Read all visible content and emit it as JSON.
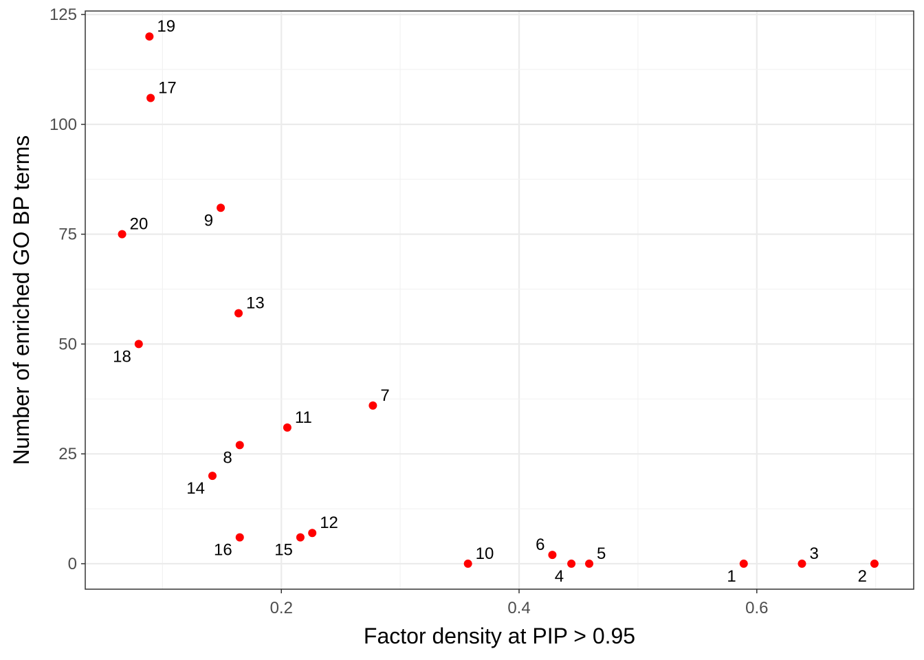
{
  "chart_data": {
    "type": "scatter",
    "title": "",
    "xlabel": "Factor density at PIP > 0.95",
    "ylabel": "Number of enriched GO BP terms",
    "xlim": [
      0.035,
      0.732
    ],
    "ylim": [
      -5.8,
      125.8
    ],
    "xticks": [
      0.2,
      0.4,
      0.6
    ],
    "xtick_labels": [
      "0.2",
      "0.4",
      "0.6"
    ],
    "yticks": [
      0,
      25,
      50,
      75,
      100,
      125
    ],
    "ytick_labels": [
      "0",
      "25",
      "50",
      "75",
      "100",
      "125"
    ],
    "grid": true,
    "legend": "none",
    "point_color": "#ff0000",
    "points": [
      {
        "label": "1",
        "x": 0.589,
        "y": 0,
        "label_pos": "bottom-left"
      },
      {
        "label": "2",
        "x": 0.699,
        "y": 0,
        "label_pos": "bottom-left"
      },
      {
        "label": "3",
        "x": 0.638,
        "y": 0,
        "label_pos": "top-right"
      },
      {
        "label": "4",
        "x": 0.444,
        "y": 0,
        "label_pos": "bottom-left"
      },
      {
        "label": "5",
        "x": 0.459,
        "y": 0,
        "label_pos": "top-right"
      },
      {
        "label": "6",
        "x": 0.428,
        "y": 2,
        "label_pos": "top-left"
      },
      {
        "label": "7",
        "x": 0.277,
        "y": 36,
        "label_pos": "top-right"
      },
      {
        "label": "8",
        "x": 0.165,
        "y": 27,
        "label_pos": "bottom-left"
      },
      {
        "label": "9",
        "x": 0.149,
        "y": 81,
        "label_pos": "bottom-left"
      },
      {
        "label": "10",
        "x": 0.357,
        "y": 0,
        "label_pos": "top-right"
      },
      {
        "label": "11",
        "x": 0.205,
        "y": 31,
        "label_pos": "top-right"
      },
      {
        "label": "12",
        "x": 0.226,
        "y": 7,
        "label_pos": "top-right"
      },
      {
        "label": "13",
        "x": 0.164,
        "y": 57,
        "label_pos": "top-right"
      },
      {
        "label": "14",
        "x": 0.142,
        "y": 20,
        "label_pos": "bottom-left"
      },
      {
        "label": "15",
        "x": 0.216,
        "y": 6,
        "label_pos": "bottom-left"
      },
      {
        "label": "16",
        "x": 0.165,
        "y": 6,
        "label_pos": "bottom-left"
      },
      {
        "label": "17",
        "x": 0.09,
        "y": 106,
        "label_pos": "top-right"
      },
      {
        "label": "18",
        "x": 0.08,
        "y": 50,
        "label_pos": "bottom-left"
      },
      {
        "label": "19",
        "x": 0.089,
        "y": 120,
        "label_pos": "top-right"
      },
      {
        "label": "20",
        "x": 0.066,
        "y": 75,
        "label_pos": "top-right"
      }
    ]
  }
}
